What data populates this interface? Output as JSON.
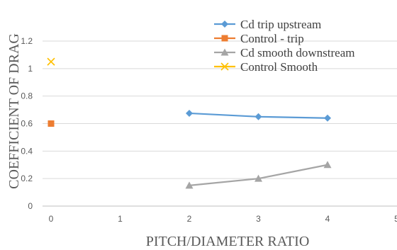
{
  "chart_data": {
    "type": "line",
    "xlabel": "PITCH/DIAMETER RATIO",
    "ylabel": "COEFFICIENT OF DRAG",
    "xlim": [
      0,
      5
    ],
    "ylim": [
      0,
      1.2
    ],
    "x_ticks": [
      "0",
      "1",
      "2",
      "3",
      "4",
      "5"
    ],
    "y_ticks": [
      "0",
      "0.2",
      "0.4",
      "0.6",
      "0.8",
      "1",
      "1.2"
    ],
    "grid": true,
    "legend_position": "top-right",
    "series": [
      {
        "name": "Cd trip upstream",
        "marker": "diamond",
        "color": "#5b9bd5",
        "x": [
          2,
          3,
          4
        ],
        "y": [
          0.675,
          0.65,
          0.64
        ]
      },
      {
        "name": "Control - trip",
        "marker": "square",
        "color": "#ed7d31",
        "x": [
          0
        ],
        "y": [
          0.6
        ]
      },
      {
        "name": "Cd smooth downstream",
        "marker": "triangle",
        "color": "#a5a5a5",
        "x": [
          2,
          3,
          4
        ],
        "y": [
          0.15,
          0.2,
          0.3
        ]
      },
      {
        "name": "Control Smooth",
        "marker": "x",
        "color": "#ffc000",
        "x": [
          0
        ],
        "y": [
          1.05
        ]
      }
    ]
  }
}
